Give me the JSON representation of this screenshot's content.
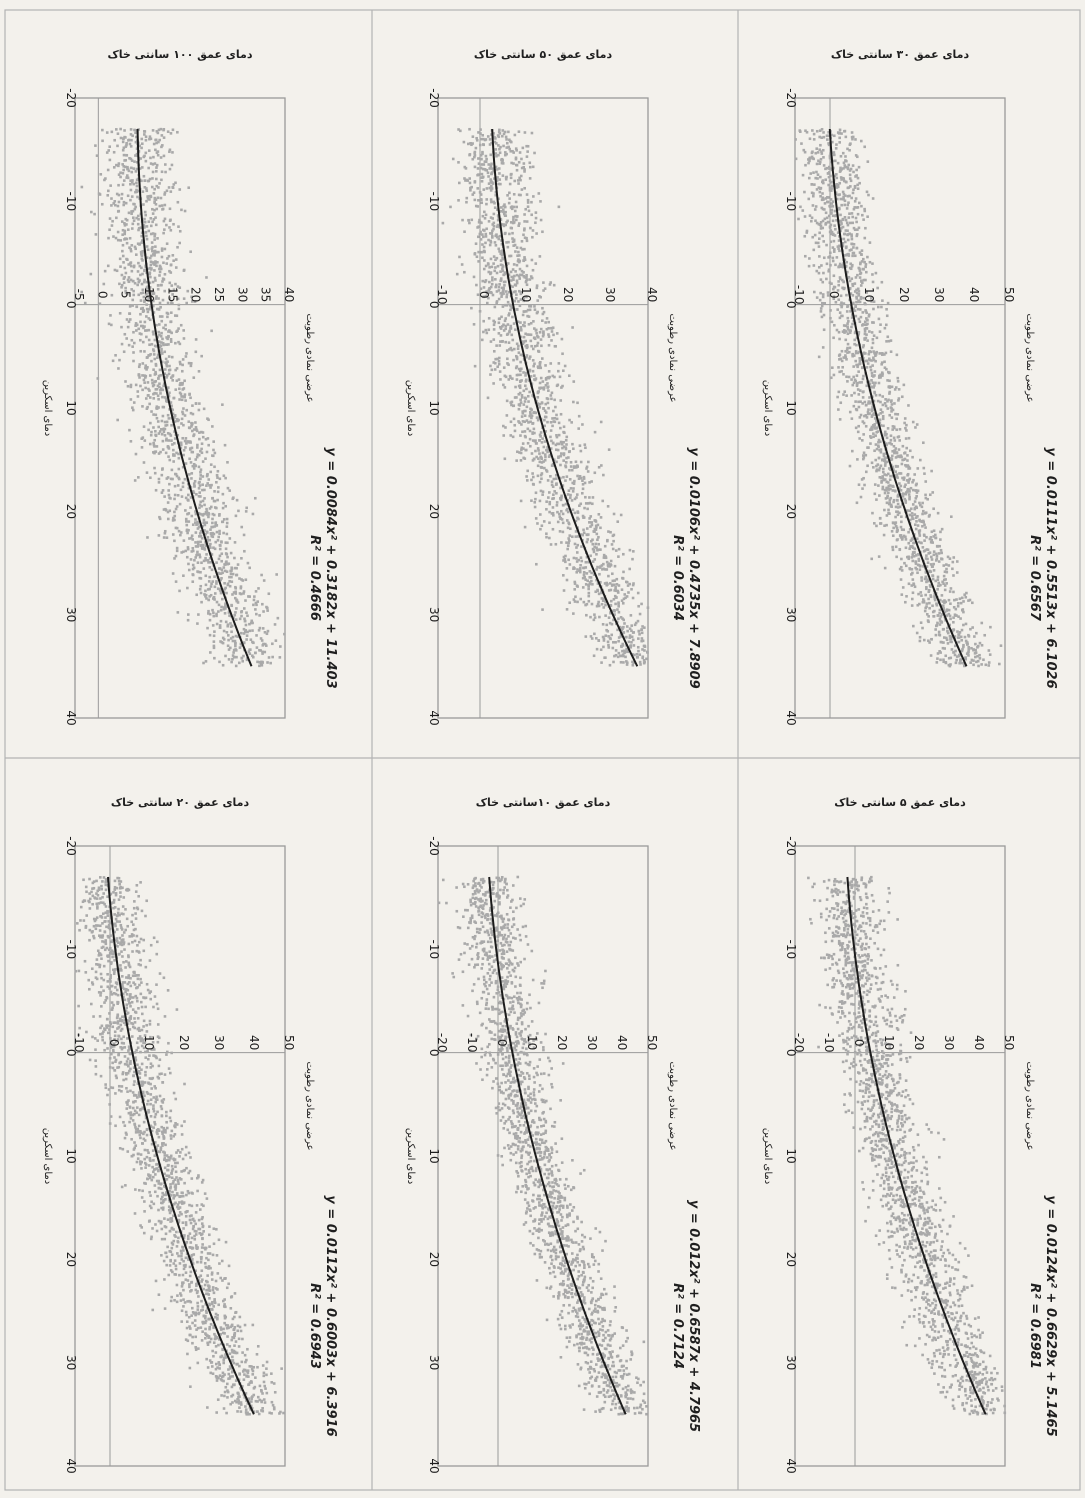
{
  "page": {
    "paper_color": "#f3f1ec",
    "border_color": "#9a9a9a",
    "point_color": "#a9a9a9",
    "curve_color": "#1c1c1c",
    "text_color": "#1f1f1f",
    "orientation": "rotated 90° clockwise (scanned page)"
  },
  "chart_data": [
    {
      "type": "scatter",
      "title": "دمای عمق ۳۰ سانتی خاک",
      "xlabel": "دمای اسکرین",
      "ylabel": "عرضی نمادی رطوبت",
      "xlim": [
        -20,
        40
      ],
      "ylim": [
        -10,
        50
      ],
      "x_ticks": [
        "-20",
        "-10",
        "0",
        "10",
        "20",
        "30",
        "40"
      ],
      "y_ticks": [
        "-10",
        "0",
        "10",
        "20",
        "30",
        "40",
        "50"
      ],
      "equation": "y = 0.0111x² + 0.5513x + 6.1026",
      "r2": "R² = 0.6567",
      "coef": [
        0.0111,
        0.5513,
        6.1026
      ],
      "x_range": [
        -17,
        35
      ],
      "scatter_spread": 4.5,
      "n_points": 1800
    },
    {
      "type": "scatter",
      "title": "دمای عمق ۵۰ سانتی خاک",
      "xlabel": "دمای اسکرین",
      "ylabel": "عرضی نمادی رطوبت",
      "xlim": [
        -20,
        40
      ],
      "ylim": [
        -10,
        40
      ],
      "x_ticks": [
        "-20",
        "-10",
        "0",
        "10",
        "20",
        "30",
        "40"
      ],
      "y_ticks": [
        "-10",
        "0",
        "10",
        "20",
        "30",
        "40"
      ],
      "equation": "y = 0.0106x² + 0.4735x + 7.8909",
      "r2": "R² = 0.6034",
      "coef": [
        0.0106,
        0.4735,
        7.8909
      ],
      "x_range": [
        -17,
        35
      ],
      "scatter_spread": 4.5,
      "n_points": 1800
    },
    {
      "type": "scatter",
      "title": "دمای عمق ۱۰۰ سانتی خاک",
      "xlabel": "دمای اسکرین",
      "ylabel": "عرضی نمادی رطوبت",
      "xlim": [
        -20,
        40
      ],
      "ylim": [
        -5,
        40
      ],
      "x_ticks": [
        "-20",
        "-10",
        "0",
        "10",
        "20",
        "30",
        "40"
      ],
      "y_ticks": [
        "-5",
        "0",
        "5",
        "10",
        "15",
        "20",
        "25",
        "30",
        "35",
        "40"
      ],
      "equation": "y = 0.0084x² + 0.3182x + 11.403",
      "r2": "R² = 0.4666",
      "coef": [
        0.0084,
        0.3182,
        11.403
      ],
      "x_range": [
        -17,
        35
      ],
      "scatter_spread": 4.2,
      "n_points": 1800
    },
    {
      "type": "scatter",
      "title": "دمای عمق ۵ سانتی خاک",
      "xlabel": "دمای اسکرین",
      "ylabel": "عرضی نمادی رطوبت",
      "xlim": [
        -20,
        40
      ],
      "ylim": [
        -20,
        50
      ],
      "x_ticks": [
        "-20",
        "-10",
        "0",
        "10",
        "20",
        "30",
        "40"
      ],
      "y_ticks": [
        "-20",
        "-10",
        "0",
        "10",
        "20",
        "30",
        "40",
        "50"
      ],
      "equation": "y = 0.0124x² + 0.6629x + 5.1465",
      "r2": "R² = 0.6981",
      "coef": [
        0.0124,
        0.6629,
        5.1465
      ],
      "x_range": [
        -17,
        35
      ],
      "scatter_spread": 5.5,
      "n_points": 1800
    },
    {
      "type": "scatter",
      "title": "دمای عمق ۱۰سانتی خاک",
      "xlabel": "دمای اسکرین",
      "ylabel": "عرضی نمادی رطوبت",
      "xlim": [
        -20,
        40
      ],
      "ylim": [
        -20,
        50
      ],
      "x_ticks": [
        "-20",
        "-10",
        "0",
        "10",
        "20",
        "30",
        "40"
      ],
      "y_ticks": [
        "-20",
        "-10",
        "0",
        "10",
        "20",
        "30",
        "40",
        "50"
      ],
      "equation": "y = 0.012x² + 0.6587x + 4.7965",
      "r2": "R² = 0.7124",
      "coef": [
        0.012,
        0.6587,
        4.7965
      ],
      "x_range": [
        -17,
        35
      ],
      "scatter_spread": 5.2,
      "n_points": 1800
    },
    {
      "type": "scatter",
      "title": "دمای عمق ۲۰ سانتی خاک",
      "xlabel": "دمای اسکرین",
      "ylabel": "عرضی نمادی رطوبت",
      "xlim": [
        -20,
        40
      ],
      "ylim": [
        -10,
        50
      ],
      "x_ticks": [
        "-20",
        "-10",
        "0",
        "10",
        "20",
        "30",
        "40"
      ],
      "y_ticks": [
        "-10",
        "0",
        "10",
        "20",
        "30",
        "40",
        "50"
      ],
      "equation": "y = 0.0112x² + 0.6003x + 6.3916",
      "r2": "R² = 0.6943",
      "coef": [
        0.0112,
        0.6003,
        6.3916
      ],
      "x_range": [
        -17,
        35
      ],
      "scatter_spread": 4.8,
      "n_points": 1800
    }
  ]
}
